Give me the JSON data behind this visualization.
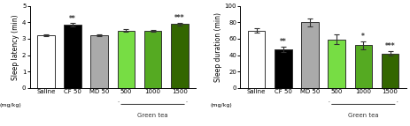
{
  "left": {
    "title": "Sleep latency (min)",
    "xlabel": "(mg/kg)",
    "green_tea_label": "Green tea",
    "categories": [
      "Saline",
      "CF 50",
      "MD 50",
      "500",
      "1000",
      "1500"
    ],
    "values": [
      3.2,
      3.85,
      3.2,
      3.5,
      3.48,
      3.9
    ],
    "errors": [
      0.07,
      0.1,
      0.07,
      0.08,
      0.07,
      0.08
    ],
    "colors": [
      "#ffffff",
      "#000000",
      "#aaaaaa",
      "#77dd44",
      "#55aa22",
      "#336600"
    ],
    "ylim": [
      0,
      5
    ],
    "yticks": [
      0,
      1,
      2,
      3,
      4,
      5
    ],
    "significance": [
      "",
      "**",
      "",
      "",
      "",
      "***"
    ],
    "sig_positions": [
      3.95,
      3.97,
      3.3,
      3.6,
      3.57,
      4.0
    ],
    "edgecolor": "#333333"
  },
  "right": {
    "title": "Sleep duration (min)",
    "xlabel": "(mg/kg)",
    "green_tea_label": "Green tea",
    "categories": [
      "Saline",
      "CF 50",
      "MD 50",
      "500",
      "1000",
      "1500"
    ],
    "values": [
      70,
      47,
      80,
      59,
      52,
      42
    ],
    "errors": [
      3,
      3,
      5,
      6,
      5,
      3
    ],
    "colors": [
      "#ffffff",
      "#000000",
      "#aaaaaa",
      "#77dd44",
      "#55aa22",
      "#336600"
    ],
    "ylim": [
      0,
      100
    ],
    "yticks": [
      0,
      20,
      40,
      60,
      80,
      100
    ],
    "significance": [
      "",
      "**",
      "",
      "",
      "*",
      "***"
    ],
    "sig_positions": [
      74,
      51,
      86,
      66,
      58,
      46
    ],
    "edgecolor": "#333333"
  }
}
